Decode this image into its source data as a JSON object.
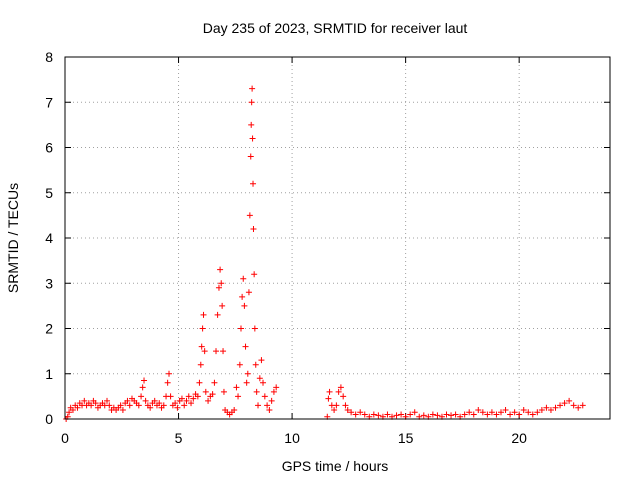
{
  "chart_data": {
    "type": "scatter",
    "title": "Day 235 of 2023, SRMTID for receiver laut",
    "xlabel": "GPS time / hours",
    "ylabel": "SRMTID / TECUs",
    "xlim": [
      0,
      24
    ],
    "ylim": [
      0,
      8
    ],
    "xticks": [
      "0",
      "5",
      "10",
      "15",
      "20"
    ],
    "yticks": [
      "0",
      "1",
      "2",
      "3",
      "4",
      "5",
      "6",
      "7",
      "8"
    ],
    "grid": true,
    "marker": "+",
    "color": "#ff0000",
    "series": [
      {
        "points": [
          [
            0.05,
            0.0
          ],
          [
            0.12,
            0.05
          ],
          [
            0.18,
            0.15
          ],
          [
            0.25,
            0.25
          ],
          [
            0.35,
            0.2
          ],
          [
            0.45,
            0.3
          ],
          [
            0.55,
            0.25
          ],
          [
            0.65,
            0.35
          ],
          [
            0.75,
            0.3
          ],
          [
            0.85,
            0.4
          ],
          [
            0.95,
            0.3
          ],
          [
            1.05,
            0.35
          ],
          [
            1.15,
            0.3
          ],
          [
            1.25,
            0.4
          ],
          [
            1.35,
            0.35
          ],
          [
            1.45,
            0.25
          ],
          [
            1.55,
            0.3
          ],
          [
            1.65,
            0.35
          ],
          [
            1.75,
            0.3
          ],
          [
            1.85,
            0.4
          ],
          [
            1.95,
            0.3
          ],
          [
            2.05,
            0.2
          ],
          [
            2.15,
            0.25
          ],
          [
            2.25,
            0.2
          ],
          [
            2.35,
            0.25
          ],
          [
            2.45,
            0.3
          ],
          [
            2.55,
            0.2
          ],
          [
            2.65,
            0.35
          ],
          [
            2.75,
            0.4
          ],
          [
            2.85,
            0.3
          ],
          [
            2.95,
            0.45
          ],
          [
            3.05,
            0.4
          ],
          [
            3.15,
            0.35
          ],
          [
            3.25,
            0.3
          ],
          [
            3.35,
            0.5
          ],
          [
            3.42,
            0.7
          ],
          [
            3.48,
            0.85
          ],
          [
            3.55,
            0.4
          ],
          [
            3.65,
            0.3
          ],
          [
            3.75,
            0.25
          ],
          [
            3.85,
            0.35
          ],
          [
            3.95,
            0.4
          ],
          [
            4.05,
            0.3
          ],
          [
            4.15,
            0.35
          ],
          [
            4.25,
            0.25
          ],
          [
            4.35,
            0.3
          ],
          [
            4.45,
            0.5
          ],
          [
            4.52,
            0.8
          ],
          [
            4.58,
            1.0
          ],
          [
            4.65,
            0.5
          ],
          [
            4.75,
            0.3
          ],
          [
            4.85,
            0.35
          ],
          [
            4.95,
            0.25
          ],
          [
            5.05,
            0.4
          ],
          [
            5.15,
            0.45
          ],
          [
            5.25,
            0.3
          ],
          [
            5.35,
            0.4
          ],
          [
            5.45,
            0.5
          ],
          [
            5.55,
            0.35
          ],
          [
            5.65,
            0.45
          ],
          [
            5.75,
            0.55
          ],
          [
            5.85,
            0.5
          ],
          [
            5.92,
            0.8
          ],
          [
            5.98,
            1.2
          ],
          [
            6.02,
            1.6
          ],
          [
            6.06,
            2.0
          ],
          [
            6.1,
            2.3
          ],
          [
            6.15,
            1.5
          ],
          [
            6.2,
            0.6
          ],
          [
            6.3,
            0.4
          ],
          [
            6.4,
            0.5
          ],
          [
            6.5,
            0.55
          ],
          [
            6.58,
            0.8
          ],
          [
            6.65,
            1.5
          ],
          [
            6.72,
            2.3
          ],
          [
            6.78,
            2.9
          ],
          [
            6.83,
            3.3
          ],
          [
            6.88,
            3.0
          ],
          [
            6.92,
            2.5
          ],
          [
            6.96,
            1.5
          ],
          [
            7.0,
            0.6
          ],
          [
            7.05,
            0.2
          ],
          [
            7.15,
            0.15
          ],
          [
            7.25,
            0.1
          ],
          [
            7.35,
            0.15
          ],
          [
            7.45,
            0.2
          ],
          [
            7.55,
            0.7
          ],
          [
            7.62,
            0.5
          ],
          [
            7.7,
            1.2
          ],
          [
            7.75,
            2.0
          ],
          [
            7.8,
            2.7
          ],
          [
            7.85,
            3.1
          ],
          [
            7.9,
            2.5
          ],
          [
            7.95,
            1.6
          ],
          [
            8.0,
            0.8
          ],
          [
            8.05,
            1.0
          ],
          [
            8.1,
            2.8
          ],
          [
            8.14,
            4.5
          ],
          [
            8.18,
            5.8
          ],
          [
            8.2,
            6.5
          ],
          [
            8.22,
            7.0
          ],
          [
            8.24,
            7.3
          ],
          [
            8.26,
            6.2
          ],
          [
            8.28,
            5.2
          ],
          [
            8.3,
            4.2
          ],
          [
            8.33,
            3.2
          ],
          [
            8.36,
            2.0
          ],
          [
            8.4,
            1.2
          ],
          [
            8.44,
            0.6
          ],
          [
            8.5,
            0.3
          ],
          [
            8.58,
            0.9
          ],
          [
            8.65,
            1.3
          ],
          [
            8.72,
            0.8
          ],
          [
            8.8,
            0.5
          ],
          [
            8.9,
            0.3
          ],
          [
            9.0,
            0.2
          ],
          [
            9.1,
            0.4
          ],
          [
            9.2,
            0.6
          ],
          [
            9.3,
            0.7
          ],
          [
            11.55,
            0.05
          ],
          [
            11.6,
            0.45
          ],
          [
            11.65,
            0.6
          ],
          [
            11.75,
            0.3
          ],
          [
            11.85,
            0.2
          ],
          [
            11.95,
            0.3
          ],
          [
            12.05,
            0.6
          ],
          [
            12.15,
            0.7
          ],
          [
            12.25,
            0.5
          ],
          [
            12.35,
            0.3
          ],
          [
            12.45,
            0.2
          ],
          [
            12.6,
            0.15
          ],
          [
            12.8,
            0.1
          ],
          [
            13.0,
            0.15
          ],
          [
            13.2,
            0.1
          ],
          [
            13.4,
            0.05
          ],
          [
            13.6,
            0.1
          ],
          [
            13.8,
            0.08
          ],
          [
            14.0,
            0.05
          ],
          [
            14.2,
            0.1
          ],
          [
            14.4,
            0.05
          ],
          [
            14.6,
            0.08
          ],
          [
            14.8,
            0.1
          ],
          [
            15.0,
            0.05
          ],
          [
            15.2,
            0.1
          ],
          [
            15.4,
            0.15
          ],
          [
            15.6,
            0.05
          ],
          [
            15.8,
            0.08
          ],
          [
            16.0,
            0.05
          ],
          [
            16.2,
            0.1
          ],
          [
            16.4,
            0.08
          ],
          [
            16.6,
            0.05
          ],
          [
            16.8,
            0.1
          ],
          [
            17.0,
            0.08
          ],
          [
            17.2,
            0.1
          ],
          [
            17.4,
            0.05
          ],
          [
            17.6,
            0.1
          ],
          [
            17.8,
            0.15
          ],
          [
            18.0,
            0.1
          ],
          [
            18.2,
            0.2
          ],
          [
            18.4,
            0.15
          ],
          [
            18.6,
            0.1
          ],
          [
            18.8,
            0.15
          ],
          [
            19.0,
            0.1
          ],
          [
            19.2,
            0.15
          ],
          [
            19.4,
            0.2
          ],
          [
            19.6,
            0.1
          ],
          [
            19.8,
            0.15
          ],
          [
            20.0,
            0.1
          ],
          [
            20.2,
            0.2
          ],
          [
            20.4,
            0.15
          ],
          [
            20.6,
            0.1
          ],
          [
            20.8,
            0.15
          ],
          [
            21.0,
            0.2
          ],
          [
            21.2,
            0.25
          ],
          [
            21.4,
            0.2
          ],
          [
            21.6,
            0.25
          ],
          [
            21.8,
            0.3
          ],
          [
            22.0,
            0.35
          ],
          [
            22.2,
            0.4
          ],
          [
            22.4,
            0.3
          ],
          [
            22.6,
            0.25
          ],
          [
            22.8,
            0.3
          ]
        ]
      }
    ]
  }
}
